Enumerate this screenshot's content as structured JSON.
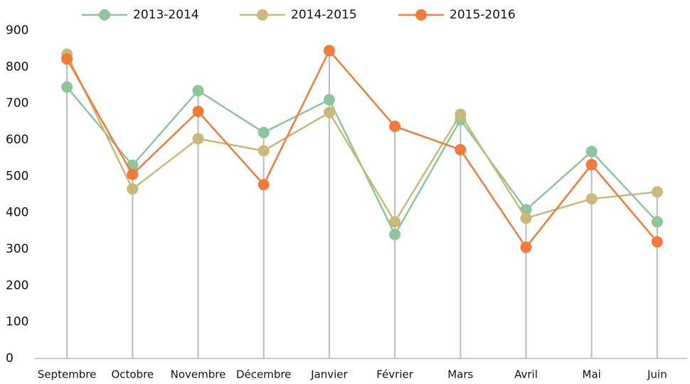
{
  "chart_data": {
    "type": "line",
    "categories": [
      "Septembre",
      "Octobre",
      "Novembre",
      "Décembre",
      "Janvier",
      "Février",
      "Mars",
      "Avril",
      "Mai",
      "Juin"
    ],
    "series": [
      {
        "name": "2013-2014",
        "color": "#8fc49d",
        "values": [
          745,
          530,
          735,
          620,
          710,
          340,
          655,
          408,
          568,
          375
        ]
      },
      {
        "name": "2014-2015",
        "color": "#c9b97c",
        "values": [
          835,
          465,
          603,
          570,
          675,
          375,
          670,
          385,
          438,
          457
        ]
      },
      {
        "name": "2015-2016",
        "color": "#f07b3b",
        "values": [
          822,
          505,
          678,
          477,
          845,
          637,
          573,
          305,
          532,
          320
        ]
      }
    ],
    "ylim": [
      0,
      900
    ],
    "yticks": [
      0,
      100,
      200,
      300,
      400,
      500,
      600,
      700,
      800,
      900
    ],
    "drop_lines": true,
    "legend": "top"
  }
}
